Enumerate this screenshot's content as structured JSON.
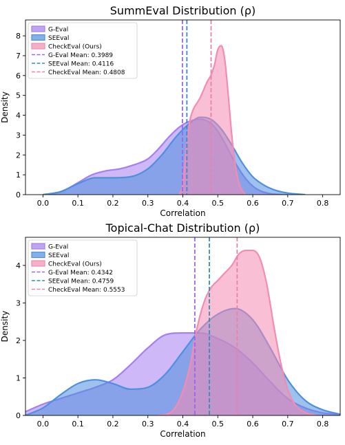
{
  "chart_data": [
    {
      "type": "area",
      "title": "SummEval Distribution (ρ)",
      "xlabel": "Correlation",
      "ylabel": "Density",
      "xlim": [
        -0.05,
        0.85
      ],
      "ylim": [
        0,
        8.8
      ],
      "x_ticks": [
        0.0,
        0.1,
        0.2,
        0.3,
        0.4,
        0.5,
        0.6,
        0.7,
        0.8
      ],
      "x_tick_labels": [
        "0.0",
        "0.1",
        "0.2",
        "0.3",
        "0.4",
        "0.5",
        "0.6",
        "0.7",
        "0.8"
      ],
      "y_ticks": [
        0,
        1,
        2,
        3,
        4,
        5,
        6,
        7,
        8
      ],
      "y_tick_labels": [
        "0",
        "1",
        "2",
        "3",
        "4",
        "5",
        "6",
        "7",
        "8"
      ],
      "legend_position": "top-left",
      "grid": false,
      "series": [
        {
          "name": "G-Eval",
          "color": "#a57ef0",
          "x": [
            0.02,
            0.06,
            0.1,
            0.14,
            0.18,
            0.22,
            0.26,
            0.3,
            0.33,
            0.36,
            0.39,
            0.42,
            0.45,
            0.48,
            0.5,
            0.52,
            0.55,
            0.58,
            0.61,
            0.65,
            0.7
          ],
          "values": [
            0.0,
            0.2,
            0.6,
            1.0,
            1.2,
            1.3,
            1.5,
            1.8,
            2.3,
            2.9,
            3.4,
            3.7,
            3.8,
            3.6,
            3.2,
            2.6,
            1.6,
            0.8,
            0.3,
            0.05,
            0.0
          ]
        },
        {
          "name": "SEEval",
          "color": "#4f8fe0",
          "x": [
            0.0,
            0.05,
            0.1,
            0.15,
            0.2,
            0.25,
            0.3,
            0.34,
            0.38,
            0.42,
            0.45,
            0.48,
            0.51,
            0.54,
            0.57,
            0.6,
            0.63,
            0.66,
            0.7,
            0.75
          ],
          "values": [
            0.0,
            0.15,
            0.55,
            0.85,
            0.85,
            0.9,
            1.3,
            2.0,
            2.9,
            3.6,
            3.9,
            3.8,
            3.3,
            2.5,
            1.6,
            0.9,
            0.5,
            0.25,
            0.08,
            0.0
          ]
        },
        {
          "name": "CheckEval (Ours)",
          "color": "#f48bb0",
          "x": [
            0.39,
            0.4,
            0.41,
            0.42,
            0.43,
            0.44,
            0.45,
            0.46,
            0.47,
            0.48,
            0.49,
            0.5,
            0.51,
            0.52,
            0.53,
            0.54,
            0.55,
            0.56,
            0.57,
            0.58
          ],
          "values": [
            0.0,
            0.5,
            2.3,
            3.7,
            4.3,
            4.6,
            4.9,
            5.3,
            5.7,
            6.0,
            6.5,
            7.3,
            7.5,
            6.8,
            5.0,
            3.0,
            1.5,
            0.6,
            0.2,
            0.0
          ]
        }
      ],
      "mean_lines": [
        {
          "label": "G-Eval Mean: 0.3989",
          "value": 0.3989,
          "color": "#9966ee"
        },
        {
          "label": "SEEval Mean: 0.4116",
          "value": 0.4116,
          "color": "#3a86d6"
        },
        {
          "label": "CheckEval Mean: 0.4808",
          "value": 0.4808,
          "color": "#ee7fa6"
        }
      ]
    },
    {
      "type": "area",
      "title": "Topical-Chat Distribution (ρ)",
      "xlabel": "Correlation",
      "ylabel": "Density",
      "xlim": [
        -0.05,
        0.85
      ],
      "ylim": [
        0,
        4.75
      ],
      "x_ticks": [
        0.0,
        0.1,
        0.2,
        0.3,
        0.4,
        0.5,
        0.6,
        0.7,
        0.8
      ],
      "x_tick_labels": [
        "0.0",
        "0.1",
        "0.2",
        "0.3",
        "0.4",
        "0.5",
        "0.6",
        "0.7",
        "0.8"
      ],
      "y_ticks": [
        0,
        1,
        2,
        3,
        4
      ],
      "y_tick_labels": [
        "0",
        "1",
        "2",
        "3",
        "4"
      ],
      "legend_position": "top-left",
      "grid": false,
      "series": [
        {
          "name": "G-Eval",
          "color": "#a57ef0",
          "x": [
            -0.05,
            0.0,
            0.05,
            0.1,
            0.15,
            0.2,
            0.25,
            0.3,
            0.35,
            0.4,
            0.45,
            0.5,
            0.55,
            0.6,
            0.65,
            0.7,
            0.75,
            0.8,
            0.85
          ],
          "values": [
            0.1,
            0.3,
            0.45,
            0.6,
            0.75,
            0.95,
            1.35,
            1.8,
            2.15,
            2.2,
            2.2,
            2.05,
            1.8,
            1.4,
            0.9,
            0.45,
            0.2,
            0.07,
            0.02
          ]
        },
        {
          "name": "SEEval",
          "color": "#4f8fe0",
          "x": [
            -0.05,
            0.0,
            0.05,
            0.1,
            0.15,
            0.2,
            0.25,
            0.3,
            0.35,
            0.4,
            0.45,
            0.5,
            0.55,
            0.6,
            0.65,
            0.7,
            0.75,
            0.8,
            0.85
          ],
          "values": [
            0.0,
            0.2,
            0.55,
            0.85,
            0.95,
            0.85,
            0.7,
            0.75,
            1.1,
            1.7,
            2.3,
            2.7,
            2.85,
            2.55,
            1.8,
            0.95,
            0.4,
            0.15,
            0.03
          ]
        },
        {
          "name": "CheckEval (Ours)",
          "color": "#f48bb0",
          "x": [
            0.33,
            0.36,
            0.39,
            0.42,
            0.44,
            0.46,
            0.48,
            0.5,
            0.52,
            0.54,
            0.56,
            0.58,
            0.6,
            0.62,
            0.64,
            0.66,
            0.68,
            0.7,
            0.72,
            0.75,
            0.78
          ],
          "values": [
            0.0,
            0.05,
            0.4,
            1.3,
            2.3,
            3.0,
            3.4,
            3.6,
            3.8,
            4.0,
            4.3,
            4.4,
            4.4,
            4.2,
            3.5,
            2.4,
            1.4,
            0.7,
            0.3,
            0.08,
            0.0
          ]
        }
      ],
      "mean_lines": [
        {
          "label": "G-Eval Mean: 0.4342",
          "value": 0.4342,
          "color": "#9966ee"
        },
        {
          "label": "SEEval Mean: 0.4759",
          "value": 0.4759,
          "color": "#2f8fb5"
        },
        {
          "label": "CheckEval Mean: 0.5553",
          "value": 0.5553,
          "color": "#ee7fa6"
        }
      ]
    }
  ]
}
